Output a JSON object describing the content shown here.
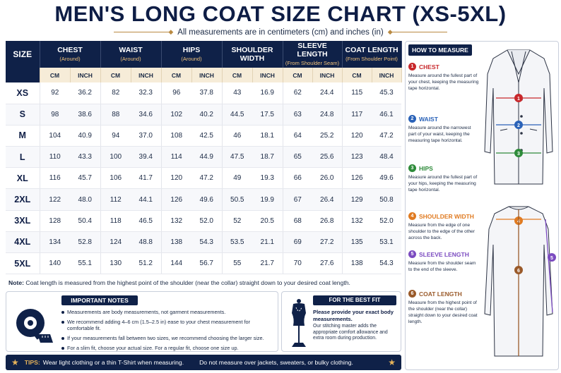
{
  "title": "MEN'S LONG COAT SIZE CHART (XS-5XL)",
  "subtitle": "All measurements are in centimeters (cm) and inches (in)",
  "table": {
    "size_header": "SIZE",
    "columns": [
      {
        "label": "CHEST",
        "sub": "(Around)"
      },
      {
        "label": "WAIST",
        "sub": "(Around)"
      },
      {
        "label": "HIPS",
        "sub": "(Around)"
      },
      {
        "label": "SHOULDER WIDTH",
        "sub": ""
      },
      {
        "label": "SLEEVE LENGTH",
        "sub": "(From Shoulder Seam)"
      },
      {
        "label": "COAT LENGTH",
        "sub": "(From Shoulder Point)"
      }
    ],
    "unit_cm": "CM",
    "unit_inch": "INCH",
    "rows": [
      {
        "size": "XS",
        "v": [
          "92",
          "36.2",
          "82",
          "32.3",
          "96",
          "37.8",
          "43",
          "16.9",
          "62",
          "24.4",
          "115",
          "45.3"
        ]
      },
      {
        "size": "S",
        "v": [
          "98",
          "38.6",
          "88",
          "34.6",
          "102",
          "40.2",
          "44.5",
          "17.5",
          "63",
          "24.8",
          "117",
          "46.1"
        ]
      },
      {
        "size": "M",
        "v": [
          "104",
          "40.9",
          "94",
          "37.0",
          "108",
          "42.5",
          "46",
          "18.1",
          "64",
          "25.2",
          "120",
          "47.2"
        ]
      },
      {
        "size": "L",
        "v": [
          "110",
          "43.3",
          "100",
          "39.4",
          "114",
          "44.9",
          "47.5",
          "18.7",
          "65",
          "25.6",
          "123",
          "48.4"
        ]
      },
      {
        "size": "XL",
        "v": [
          "116",
          "45.7",
          "106",
          "41.7",
          "120",
          "47.2",
          "49",
          "19.3",
          "66",
          "26.0",
          "126",
          "49.6"
        ]
      },
      {
        "size": "2XL",
        "v": [
          "122",
          "48.0",
          "112",
          "44.1",
          "126",
          "49.6",
          "50.5",
          "19.9",
          "67",
          "26.4",
          "129",
          "50.8"
        ]
      },
      {
        "size": "3XL",
        "v": [
          "128",
          "50.4",
          "118",
          "46.5",
          "132",
          "52.0",
          "52",
          "20.5",
          "68",
          "26.8",
          "132",
          "52.0"
        ]
      },
      {
        "size": "4XL",
        "v": [
          "134",
          "52.8",
          "124",
          "48.8",
          "138",
          "54.3",
          "53.5",
          "21.1",
          "69",
          "27.2",
          "135",
          "53.1"
        ]
      },
      {
        "size": "5XL",
        "v": [
          "140",
          "55.1",
          "130",
          "51.2",
          "144",
          "56.7",
          "55",
          "21.7",
          "70",
          "27.6",
          "138",
          "54.3"
        ]
      }
    ]
  },
  "note": {
    "label": "Note:",
    "text": "Coat length is measured from the highest point of the shoulder (near the collar) straight down to your desired coat length."
  },
  "important_notes": {
    "title": "IMPORTANT NOTES",
    "items": [
      "Measurements are body measurements, not garment measurements.",
      "We recommend adding 4–6 cm (1.5–2.5 in) ease to your chest measurement for comfortable fit.",
      "If your measurements fall between two sizes, we recommend choosing the larger size.",
      "For a slim fit, choose your actual size. For a regular fit, choose one size up."
    ]
  },
  "best_fit": {
    "title": "FOR THE BEST FIT",
    "bold": "Please provide your exact body measurements.",
    "text": "Our stitching master adds the appropriate comfort allowance and extra room during production."
  },
  "tips": {
    "label": "TIPS:",
    "text1": "Wear light clothing or a thin T-Shirt when measuring.",
    "text2": "Do not measure over jackets, sweaters, or bulky clothing."
  },
  "how_to_measure": {
    "title": "HOW TO MEASURE",
    "steps": [
      {
        "num": "1",
        "label": "CHEST",
        "color": "#c8282c",
        "text": "Measure around the fullest part of your chest, keeping the measuring tape horizontal."
      },
      {
        "num": "2",
        "label": "WAIST",
        "color": "#2a62b8",
        "text": "Measure around the narrowest part of your waist, keeping the measuring tape horizontal."
      },
      {
        "num": "3",
        "label": "HIPS",
        "color": "#2e8b3a",
        "text": "Measure around the fullest part of your hips, keeping the measuring tape horizontal."
      },
      {
        "num": "4",
        "label": "SHOULDER WIDTH",
        "color": "#e07b22",
        "text": "Measure from the edge of one shoulder to the edge of the other across the back."
      },
      {
        "num": "5",
        "label": "SLEEVE LENGTH",
        "color": "#7b4bc0",
        "text": "Measure from the shoulder seam to the end of the sleeve."
      },
      {
        "num": "6",
        "label": "COAT LENGTH",
        "color": "#9a5a2a",
        "text": "Measure from the highest point of the shoulder (near the collar) straight down to your desired coat length."
      }
    ]
  },
  "colors": {
    "navy": "#0f2148",
    "gold": "#e6b35a",
    "cream": "#f6ecd8"
  }
}
